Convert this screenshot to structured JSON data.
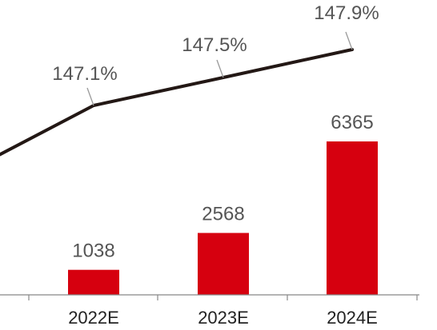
{
  "chart_data": {
    "type": "bar",
    "categories": [
      "2022E",
      "2023E",
      "2024E"
    ],
    "series": [
      {
        "type": "bar",
        "values": [
          1038,
          2568,
          6365
        ],
        "labels": [
          "1038",
          "2568",
          "6365"
        ],
        "color": "#D6000F"
      },
      {
        "type": "line",
        "values": [
          147.1,
          147.5,
          147.9
        ],
        "labels": [
          "147.1%",
          "147.5%",
          "147.9%"
        ],
        "color": "#231815"
      }
    ],
    "title": "",
    "xlabel": "",
    "ylabel": "",
    "grid": false,
    "legend": "none"
  }
}
